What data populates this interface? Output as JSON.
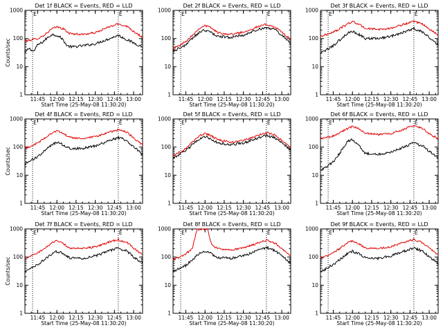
{
  "chart_data": [
    {
      "type": "line",
      "title": "Det 1f BLACK = Events, RED = LLD",
      "xlabel": "Start Time (25-May-08 11:30:20)",
      "ylabel": "Counts/sec",
      "yscale": "log",
      "ylim": [
        1,
        1000
      ],
      "xlim": [
        "11:35:00",
        "13:07:00"
      ],
      "x_ticks": [
        "11:45",
        "12:00",
        "12:15",
        "12:30",
        "12:45",
        "13:00"
      ],
      "y_ticks": [
        "1",
        "10",
        "100",
        "1000"
      ],
      "markers": [
        {
          "time": "11:41:00",
          "label": "E"
        },
        {
          "time": "12:48:00",
          "label": "E"
        }
      ],
      "series": [
        {
          "name": "Events",
          "color": "#000000",
          "x": [
            "11:35",
            "11:38",
            "11:42",
            "11:45",
            "11:48",
            "11:52",
            "11:56",
            "12:00",
            "12:04",
            "12:08",
            "12:12",
            "12:20",
            "12:30",
            "12:40",
            "12:48",
            "12:55",
            "13:00",
            "13:07"
          ],
          "y": [
            30,
            45,
            35,
            60,
            70,
            100,
            140,
            130,
            100,
            55,
            50,
            55,
            65,
            95,
            130,
            90,
            70,
            50
          ]
        },
        {
          "name": "LLD",
          "color": "#e00000",
          "x": [
            "11:35",
            "11:40",
            "11:45",
            "11:50",
            "11:56",
            "12:00",
            "12:05",
            "12:10",
            "12:20",
            "12:30",
            "12:40",
            "12:48",
            "12:55",
            "13:00",
            "13:07"
          ],
          "y": [
            80,
            90,
            100,
            130,
            220,
            260,
            220,
            150,
            140,
            160,
            250,
            330,
            270,
            180,
            110
          ]
        }
      ]
    },
    {
      "type": "line",
      "title": "Det 2f BLACK = Events, RED = LLD",
      "xlabel": "Start Time (25-May-08 11:30:20)",
      "ylabel": "",
      "yscale": "log",
      "ylim": [
        1,
        1000
      ],
      "xlim": [
        "11:35:00",
        "13:07:00"
      ],
      "x_ticks": [
        "11:45",
        "12:00",
        "12:15",
        "12:30",
        "12:45",
        "13:00"
      ],
      "y_ticks": [
        "1",
        "10",
        "100",
        "1000"
      ],
      "markers": [
        {
          "time": "11:41:00",
          "label": "E"
        },
        {
          "time": "12:48:00",
          "label": "E"
        }
      ],
      "series": [
        {
          "name": "Events",
          "color": "#000000",
          "x": [
            "11:35",
            "11:40",
            "11:45",
            "11:50",
            "11:56",
            "12:00",
            "12:05",
            "12:10",
            "12:20",
            "12:30",
            "12:40",
            "12:48",
            "12:55",
            "13:00",
            "13:07"
          ],
          "y": [
            35,
            45,
            60,
            100,
            170,
            200,
            160,
            120,
            110,
            130,
            200,
            250,
            200,
            130,
            70
          ]
        },
        {
          "name": "LLD",
          "color": "#e00000",
          "x": [
            "11:35",
            "11:40",
            "11:45",
            "11:50",
            "11:56",
            "12:00",
            "12:05",
            "12:10",
            "12:20",
            "12:30",
            "12:40",
            "12:48",
            "12:55",
            "13:00",
            "13:07"
          ],
          "y": [
            45,
            55,
            80,
            130,
            240,
            290,
            240,
            160,
            140,
            170,
            250,
            320,
            250,
            170,
            90
          ]
        }
      ]
    },
    {
      "type": "line",
      "title": "Det 3f BLACK = Events, RED = LLD",
      "xlabel": "Start Time (25-May-08 11:30:20)",
      "ylabel": "",
      "yscale": "log",
      "ylim": [
        1,
        1000
      ],
      "xlim": [
        "11:35:00",
        "13:07:00"
      ],
      "x_ticks": [
        "11:45",
        "12:00",
        "12:15",
        "12:30",
        "12:45",
        "13:00"
      ],
      "y_ticks": [
        "1",
        "10",
        "100",
        "1000"
      ],
      "markers": [
        {
          "time": "11:41:00",
          "label": "E"
        },
        {
          "time": "12:48:00",
          "label": "E"
        }
      ],
      "series": [
        {
          "name": "Events",
          "color": "#000000",
          "x": [
            "11:35",
            "11:40",
            "11:45",
            "11:50",
            "11:56",
            "12:00",
            "12:05",
            "12:10",
            "12:20",
            "12:30",
            "12:40",
            "12:48",
            "12:55",
            "13:00",
            "13:07"
          ],
          "y": [
            30,
            40,
            55,
            90,
            150,
            180,
            140,
            100,
            100,
            120,
            170,
            230,
            170,
            110,
            60
          ]
        },
        {
          "name": "LLD",
          "color": "#e00000",
          "x": [
            "11:35",
            "11:40",
            "11:45",
            "11:50",
            "11:56",
            "12:00",
            "12:05",
            "12:10",
            "12:20",
            "12:30",
            "12:40",
            "12:48",
            "12:55",
            "13:00",
            "13:07"
          ],
          "y": [
            120,
            140,
            170,
            220,
            330,
            400,
            320,
            230,
            210,
            230,
            320,
            400,
            320,
            220,
            130
          ]
        }
      ]
    },
    {
      "type": "line",
      "title": "Det 4f BLACK = Events, RED = LLD",
      "xlabel": "Start Time (25-May-08 11:30:20)",
      "ylabel": "Counts/sec",
      "yscale": "log",
      "ylim": [
        1,
        1000
      ],
      "xlim": [
        "11:35:00",
        "13:07:00"
      ],
      "x_ticks": [
        "11:45",
        "12:00",
        "12:15",
        "12:30",
        "12:45",
        "13:00"
      ],
      "y_ticks": [
        "1",
        "10",
        "100",
        "1000"
      ],
      "markers": [
        {
          "time": "11:41:00",
          "label": "E"
        },
        {
          "time": "12:48:00",
          "label": "E"
        }
      ],
      "series": [
        {
          "name": "Events",
          "color": "#000000",
          "x": [
            "11:35",
            "11:40",
            "11:45",
            "11:50",
            "11:56",
            "12:00",
            "12:05",
            "12:10",
            "12:20",
            "12:30",
            "12:40",
            "12:48",
            "12:55",
            "13:00",
            "13:07"
          ],
          "y": [
            25,
            35,
            45,
            70,
            120,
            150,
            120,
            90,
            90,
            110,
            160,
            220,
            170,
            100,
            55
          ]
        },
        {
          "name": "LLD",
          "color": "#e00000",
          "x": [
            "11:35",
            "11:40",
            "11:45",
            "11:50",
            "11:56",
            "12:00",
            "12:05",
            "12:10",
            "12:20",
            "12:30",
            "12:40",
            "12:48",
            "12:55",
            "13:00",
            "13:07"
          ],
          "y": [
            90,
            110,
            140,
            200,
            320,
            380,
            300,
            220,
            200,
            230,
            330,
            420,
            330,
            210,
            120
          ]
        }
      ]
    },
    {
      "type": "line",
      "title": "Det 5f BLACK = Events, RED = LLD",
      "xlabel": "Start Time (25-May-08 11:30:20)",
      "ylabel": "",
      "yscale": "log",
      "ylim": [
        1,
        1000
      ],
      "xlim": [
        "11:35:00",
        "13:07:00"
      ],
      "x_ticks": [
        "11:45",
        "12:00",
        "12:15",
        "12:30",
        "12:45",
        "13:00"
      ],
      "y_ticks": [
        "1",
        "10",
        "100",
        "1000"
      ],
      "markers": [
        {
          "time": "11:41:00",
          "label": "E"
        },
        {
          "time": "12:48:00",
          "label": "E"
        }
      ],
      "series": [
        {
          "name": "Events",
          "color": "#000000",
          "x": [
            "11:35",
            "11:40",
            "11:45",
            "11:50",
            "11:56",
            "12:00",
            "12:05",
            "12:10",
            "12:20",
            "12:30",
            "12:40",
            "12:48",
            "12:55",
            "13:00",
            "13:07"
          ],
          "y": [
            40,
            55,
            75,
            120,
            200,
            240,
            190,
            140,
            120,
            140,
            200,
            260,
            210,
            140,
            80
          ]
        },
        {
          "name": "LLD",
          "color": "#e00000",
          "x": [
            "11:35",
            "11:40",
            "11:45",
            "11:50",
            "11:56",
            "12:00",
            "12:05",
            "12:10",
            "12:20",
            "12:30",
            "12:40",
            "12:48",
            "12:55",
            "13:00",
            "13:07"
          ],
          "y": [
            50,
            65,
            90,
            150,
            260,
            310,
            250,
            180,
            150,
            170,
            250,
            330,
            260,
            170,
            95
          ]
        }
      ]
    },
    {
      "type": "line",
      "title": "Det 6f BLACK = Events, RED = LLD",
      "xlabel": "Start Time (25-May-08 11:30:20)",
      "ylabel": "",
      "yscale": "log",
      "ylim": [
        1,
        1000
      ],
      "xlim": [
        "11:35:00",
        "13:07:00"
      ],
      "x_ticks": [
        "11:45",
        "12:00",
        "12:15",
        "12:30",
        "12:45",
        "13:00"
      ],
      "y_ticks": [
        "1",
        "10",
        "100",
        "1000"
      ],
      "markers": [
        {
          "time": "11:41:00",
          "label": "E"
        },
        {
          "time": "12:48:00",
          "label": "E"
        }
      ],
      "series": [
        {
          "name": "Events",
          "color": "#000000",
          "x": [
            "11:35",
            "11:40",
            "11:45",
            "11:50",
            "11:56",
            "12:00",
            "12:05",
            "12:10",
            "12:20",
            "12:30",
            "12:40",
            "12:48",
            "12:55",
            "13:00",
            "13:07"
          ],
          "y": [
            15,
            20,
            30,
            60,
            160,
            190,
            120,
            60,
            55,
            65,
            100,
            140,
            110,
            70,
            40
          ]
        },
        {
          "name": "LLD",
          "color": "#e00000",
          "x": [
            "11:35",
            "11:40",
            "11:45",
            "11:50",
            "11:56",
            "12:00",
            "12:05",
            "12:10",
            "12:20",
            "12:30",
            "12:40",
            "12:48",
            "12:55",
            "13:00",
            "13:07"
          ],
          "y": [
            200,
            220,
            250,
            320,
            450,
            550,
            450,
            320,
            280,
            300,
            420,
            600,
            450,
            300,
            200
          ]
        }
      ]
    },
    {
      "type": "line",
      "title": "Det 7f BLACK = Events, RED = LLD",
      "xlabel": "Start Time (25-May-08 11:30:20)",
      "ylabel": "Counts/sec",
      "yscale": "log",
      "ylim": [
        1,
        1000
      ],
      "xlim": [
        "11:35:00",
        "13:07:00"
      ],
      "x_ticks": [
        "11:45",
        "12:00",
        "12:15",
        "12:30",
        "12:45",
        "13:00"
      ],
      "y_ticks": [
        "1",
        "10",
        "100",
        "1000"
      ],
      "markers": [
        {
          "time": "11:41:00",
          "label": "E"
        },
        {
          "time": "12:48:00",
          "label": "E"
        }
      ],
      "series": [
        {
          "name": "Events",
          "color": "#000000",
          "x": [
            "11:35",
            "11:40",
            "11:45",
            "11:50",
            "11:56",
            "12:00",
            "12:05",
            "12:10",
            "12:20",
            "12:30",
            "12:40",
            "12:48",
            "12:55",
            "13:00",
            "13:07"
          ],
          "y": [
            30,
            40,
            55,
            80,
            130,
            160,
            130,
            95,
            90,
            110,
            160,
            210,
            160,
            100,
            60
          ]
        },
        {
          "name": "LLD",
          "color": "#e00000",
          "x": [
            "11:35",
            "11:40",
            "11:45",
            "11:50",
            "11:56",
            "12:00",
            "12:05",
            "12:10",
            "12:20",
            "12:30",
            "12:40",
            "12:48",
            "12:55",
            "13:00",
            "13:07"
          ],
          "y": [
            90,
            110,
            140,
            200,
            320,
            380,
            300,
            210,
            200,
            230,
            330,
            420,
            320,
            210,
            120
          ]
        }
      ]
    },
    {
      "type": "line",
      "title": "Det 8f BLACK = Events, RED = LLD",
      "xlabel": "Start Time (25-May-08 11:30:20)",
      "ylabel": "",
      "yscale": "log",
      "ylim": [
        1,
        1000
      ],
      "xlim": [
        "11:35:00",
        "13:07:00"
      ],
      "x_ticks": [
        "11:45",
        "12:00",
        "12:15",
        "12:30",
        "12:45",
        "13:00"
      ],
      "y_ticks": [
        "1",
        "10",
        "100",
        "1000"
      ],
      "markers": [
        {
          "time": "11:41:00",
          "label": "E"
        },
        {
          "time": "12:48:00",
          "label": "E"
        }
      ],
      "series": [
        {
          "name": "Events",
          "color": "#000000",
          "x": [
            "11:35",
            "11:40",
            "11:45",
            "11:50",
            "11:56",
            "12:00",
            "12:05",
            "12:10",
            "12:20",
            "12:30",
            "12:40",
            "12:48",
            "12:55",
            "13:00",
            "13:07"
          ],
          "y": [
            30,
            40,
            50,
            80,
            140,
            170,
            130,
            95,
            90,
            110,
            160,
            220,
            170,
            110,
            60
          ]
        },
        {
          "name": "LLD",
          "color": "#e00000",
          "x": [
            "11:35",
            "11:40",
            "11:45",
            "11:50",
            "11:54",
            "11:58",
            "12:02",
            "12:05",
            "12:10",
            "12:20",
            "12:30",
            "12:40",
            "12:48",
            "12:55",
            "13:00",
            "13:07"
          ],
          "y": [
            80,
            100,
            130,
            200,
            1000,
            1000,
            1000,
            280,
            200,
            180,
            210,
            300,
            400,
            310,
            200,
            110
          ]
        }
      ]
    },
    {
      "type": "line",
      "title": "Det 9f BLACK = Events, RED = LLD",
      "xlabel": "Start Time (25-May-08 11:30:20)",
      "ylabel": "",
      "yscale": "log",
      "ylim": [
        1,
        1000
      ],
      "xlim": [
        "11:35:00",
        "13:07:00"
      ],
      "x_ticks": [
        "11:45",
        "12:00",
        "12:15",
        "12:30",
        "12:45",
        "13:00"
      ],
      "y_ticks": [
        "1",
        "10",
        "100",
        "1000"
      ],
      "markers": [
        {
          "time": "11:41:00",
          "label": "E"
        },
        {
          "time": "12:48:00",
          "label": "E"
        }
      ],
      "series": [
        {
          "name": "Events",
          "color": "#000000",
          "x": [
            "11:35",
            "11:40",
            "11:45",
            "11:50",
            "11:56",
            "12:00",
            "12:05",
            "12:10",
            "12:20",
            "12:30",
            "12:40",
            "12:48",
            "12:55",
            "13:00",
            "13:07"
          ],
          "y": [
            30,
            40,
            55,
            80,
            130,
            160,
            130,
            95,
            90,
            110,
            160,
            210,
            160,
            100,
            60
          ]
        },
        {
          "name": "LLD",
          "color": "#e00000",
          "x": [
            "11:35",
            "11:40",
            "11:45",
            "11:50",
            "11:56",
            "12:00",
            "12:05",
            "12:10",
            "12:20",
            "12:30",
            "12:40",
            "12:48",
            "12:55",
            "13:00",
            "13:07"
          ],
          "y": [
            90,
            110,
            140,
            200,
            320,
            380,
            300,
            210,
            200,
            230,
            330,
            420,
            320,
            210,
            120
          ]
        }
      ]
    }
  ]
}
